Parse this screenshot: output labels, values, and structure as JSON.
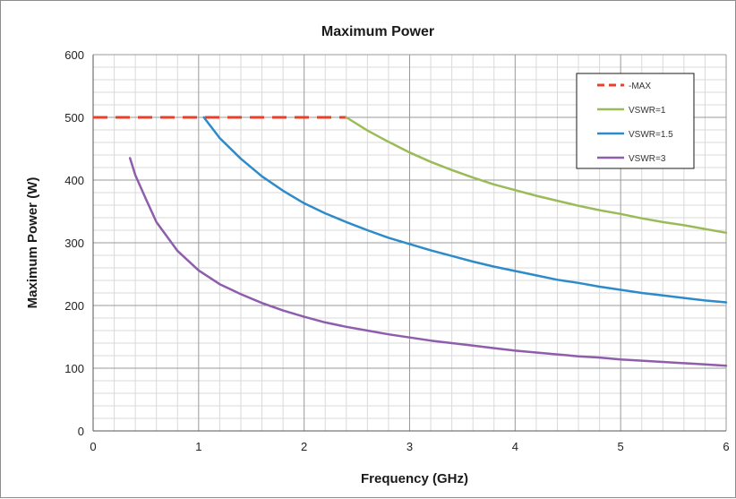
{
  "chart_data": {
    "type": "line",
    "title": "Maximum Power",
    "xlabel": "Frequency (GHz)",
    "ylabel": "Maximum Power (W)",
    "xlim": [
      0,
      6
    ],
    "ylim": [
      0,
      600
    ],
    "x_ticks": [
      0,
      1,
      2,
      3,
      4,
      5,
      6
    ],
    "y_ticks": [
      0,
      100,
      200,
      300,
      400,
      500,
      600
    ],
    "grid": true,
    "legend_position": "top-right",
    "series": [
      {
        "name": "MAX",
        "color": "#e8402a",
        "dashed": true,
        "x": [
          0,
          2.4
        ],
        "y": [
          500,
          500
        ]
      },
      {
        "name": "VSWR=1",
        "color": "#9bbb59",
        "dashed": false,
        "x": [
          2.4,
          2.6,
          2.8,
          3.0,
          3.2,
          3.4,
          3.6,
          3.8,
          4.0,
          4.2,
          4.4,
          4.6,
          4.8,
          5.0,
          5.2,
          5.4,
          5.6,
          5.8,
          6.0
        ],
        "y": [
          500,
          479,
          461,
          444,
          429,
          416,
          404,
          393,
          384,
          375,
          367,
          359,
          352,
          346,
          339,
          333,
          328,
          322,
          316
        ]
      },
      {
        "name": "VSWR=1.5",
        "color": "#2e8bc9",
        "dashed": false,
        "x": [
          1.05,
          1.2,
          1.4,
          1.6,
          1.8,
          2.0,
          2.2,
          2.4,
          2.6,
          2.8,
          3.0,
          3.2,
          3.4,
          3.6,
          3.8,
          4.0,
          4.2,
          4.4,
          4.6,
          4.8,
          5.0,
          5.2,
          5.4,
          5.6,
          5.8,
          6.0
        ],
        "y": [
          500,
          467,
          434,
          406,
          383,
          363,
          347,
          333,
          320,
          308,
          298,
          288,
          279,
          270,
          262,
          255,
          248,
          241,
          236,
          230,
          225,
          220,
          216,
          212,
          208,
          205
        ]
      },
      {
        "name": "VSWR=3",
        "color": "#8e5dac",
        "dashed": false,
        "x": [
          0.35,
          0.4,
          0.5,
          0.6,
          0.8,
          1.0,
          1.2,
          1.4,
          1.6,
          1.8,
          2.0,
          2.2,
          2.4,
          2.6,
          2.8,
          3.0,
          3.2,
          3.4,
          3.6,
          3.8,
          4.0,
          4.2,
          4.4,
          4.6,
          4.8,
          5.0,
          5.2,
          5.4,
          5.6,
          5.8,
          6.0
        ],
        "y": [
          435,
          408,
          370,
          333,
          287,
          256,
          234,
          218,
          204,
          192,
          182,
          173,
          166,
          160,
          154,
          149,
          144,
          140,
          136,
          132,
          128,
          125,
          122,
          119,
          117,
          114,
          112,
          110,
          108,
          106,
          104
        ]
      }
    ]
  }
}
